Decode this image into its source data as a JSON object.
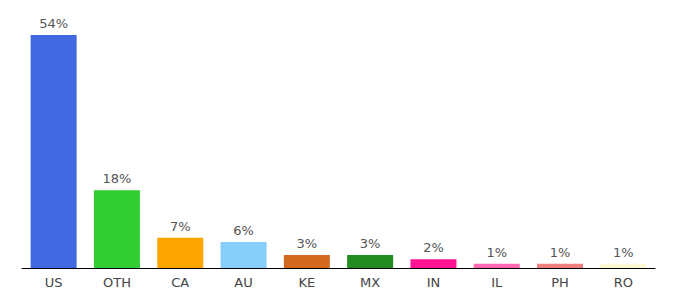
{
  "chart_data": {
    "type": "bar",
    "categories": [
      "US",
      "OTH",
      "CA",
      "AU",
      "KE",
      "MX",
      "IN",
      "IL",
      "PH",
      "RO"
    ],
    "values": [
      54,
      18,
      7,
      6,
      3,
      3,
      2,
      1,
      1,
      1
    ],
    "value_labels": [
      "54%",
      "18%",
      "7%",
      "6%",
      "3%",
      "3%",
      "2%",
      "1%",
      "1%",
      "1%"
    ],
    "colors": [
      "#4169e1",
      "#32cd32",
      "#ffa500",
      "#87cefa",
      "#d2691e",
      "#228b22",
      "#ff1493",
      "#ff69b4",
      "#f08080",
      "#fafad2"
    ],
    "ylim": [
      0,
      54
    ],
    "data_labels": true,
    "tick_labels": "x",
    "grid": false
  }
}
